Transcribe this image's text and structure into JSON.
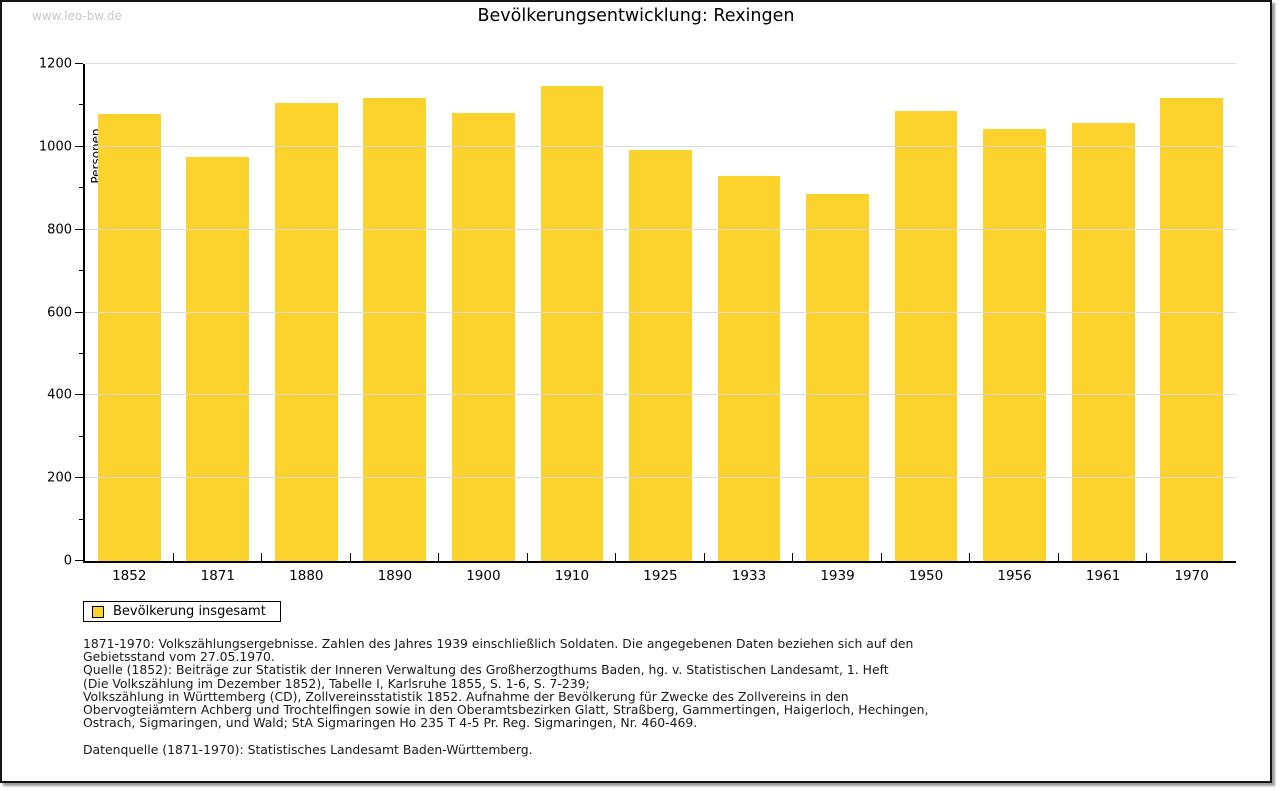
{
  "watermark": "www.leo-bw.de",
  "header": {
    "title": "Bevölkerungsentwicklung: Rexingen"
  },
  "chart_data": {
    "type": "bar",
    "title": "Bevölkerungsentwicklung: Rexingen",
    "categories": [
      "1852",
      "1871",
      "1880",
      "1890",
      "1900",
      "1910",
      "1925",
      "1933",
      "1939",
      "1950",
      "1956",
      "1961",
      "1970"
    ],
    "values": [
      1080,
      975,
      1106,
      1117,
      1081,
      1147,
      993,
      930,
      885,
      1086,
      1043,
      1057,
      1119
    ],
    "xlabel": "",
    "ylabel": "Personen",
    "ylim": [
      0,
      1200
    ],
    "ytick_step": 200,
    "minor_tick_step": 100,
    "grid": true,
    "bar_color": "#FCD32D",
    "gridline_color": "#DCDCDC",
    "legend_position": "bottom-left",
    "legend": [
      {
        "label": "Bevölkerung insgesamt",
        "color": "#FCD32D"
      }
    ]
  },
  "footer": {
    "lines": [
      "1871-1970: Volkszählungsergebnisse. Zahlen des Jahres 1939 einschließlich Soldaten. Die angegebenen Daten beziehen sich auf den",
      "Gebietsstand vom 27.05.1970.",
      "Quelle (1852): Beiträge zur Statistik der Inneren Verwaltung des Großherzogthums Baden, hg. v. Statistischen Landesamt, 1. Heft",
      "(Die Volkszählung im Dezember 1852), Tabelle I, Karlsruhe 1855, S. 1-6, S. 7-239;",
      "Volkszählung in Württemberg (CD), Zollvereinsstatistik 1852. Aufnahme der Bevölkerung für Zwecke des Zollvereins in den",
      "Obervogteiämtern Achberg und Trochtelfingen sowie in den Oberamtsbezirken Glatt, Straßberg, Gammertingen, Haigerloch, Hechingen,",
      "Ostrach, Sigmaringen, und Wald; StA Sigmaringen Ho 235 T 4-5 Pr. Reg. Sigmaringen, Nr. 460-469."
    ],
    "datasource": "Datenquelle (1871-1970): Statistisches Landesamt Baden-Württemberg."
  }
}
